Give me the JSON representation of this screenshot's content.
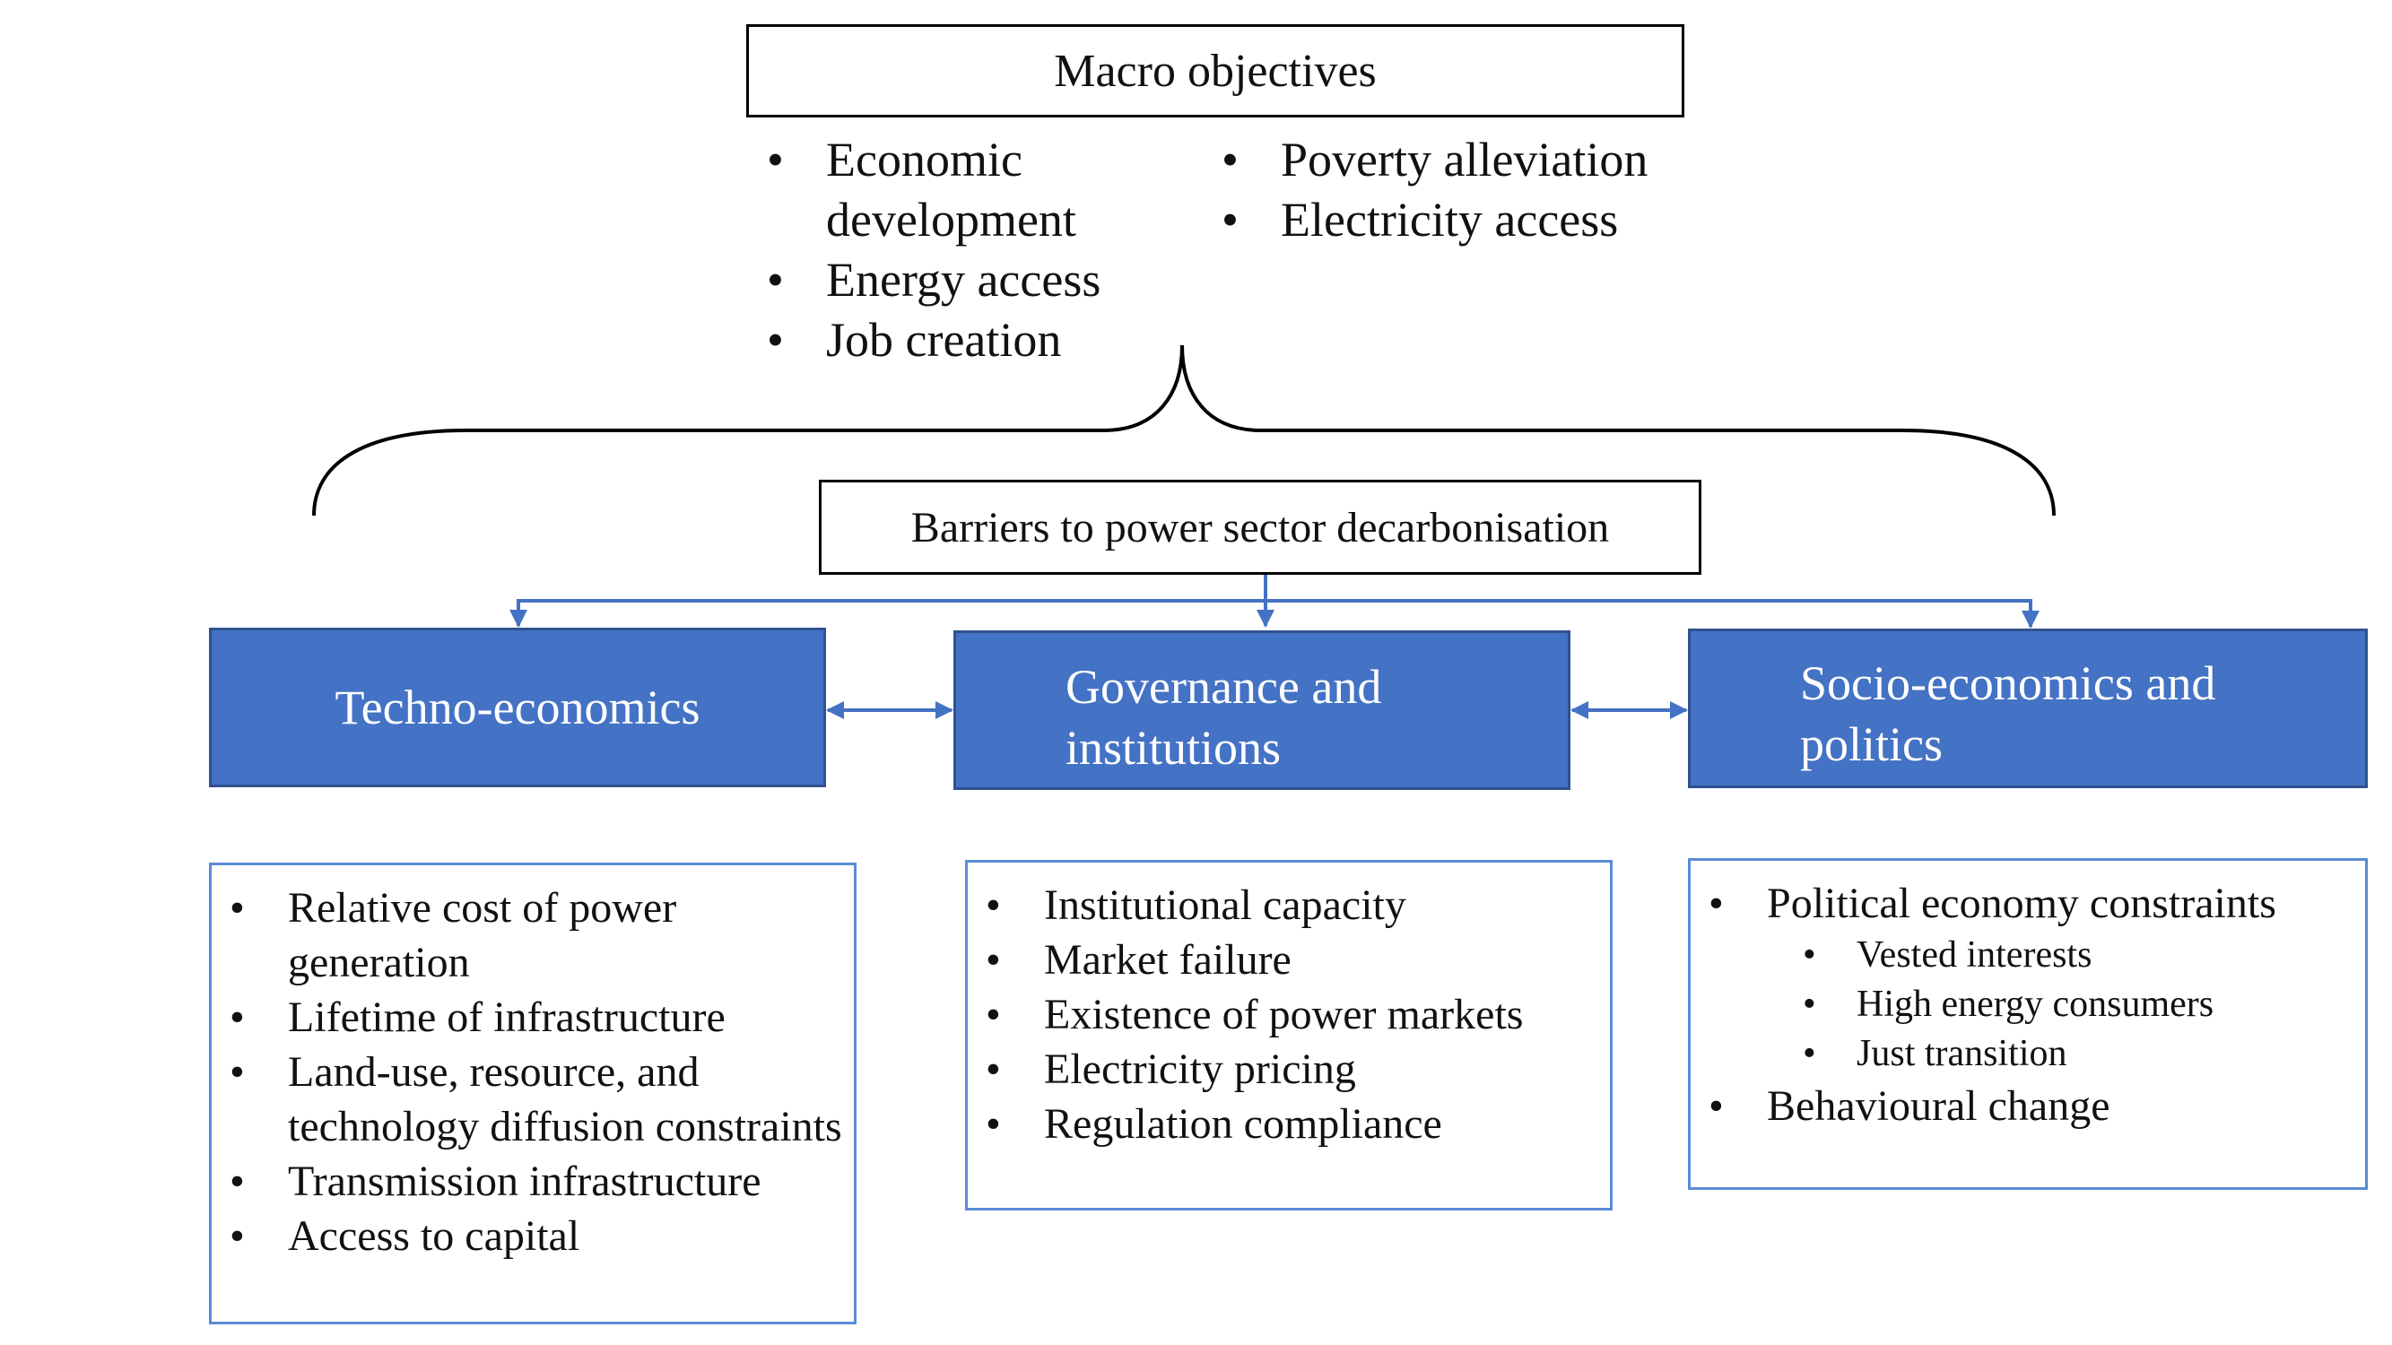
{
  "macro": {
    "title": "Macro objectives",
    "left_items": [
      "Economic development",
      "Energy access",
      "Job creation"
    ],
    "right_items": [
      "Poverty alleviation",
      "Electricity access"
    ]
  },
  "barriers": {
    "title": "Barriers to power sector decarbonisation"
  },
  "categories": {
    "techno": "Techno-economics",
    "governance": "Governance and institutions",
    "socio": "Socio-economics and politics"
  },
  "details": {
    "techno": [
      "Relative cost of power generation",
      "Lifetime of infrastructure",
      "Land-use, resource, and technology diffusion constraints",
      "Transmission infrastructure",
      "Access to capital"
    ],
    "governance": [
      "Institutional capacity",
      "Market failure",
      "Existence of power markets",
      "Electricity pricing",
      "Regulation compliance"
    ],
    "socio": {
      "main1": "Political economy constraints",
      "sub": [
        "Vested interests",
        "High energy consumers",
        "Just transition"
      ],
      "main2": "Behavioural change"
    }
  },
  "colors": {
    "category_fill": "#4472c4",
    "connector": "#4472c4",
    "detail_border": "#5b8bd6"
  }
}
